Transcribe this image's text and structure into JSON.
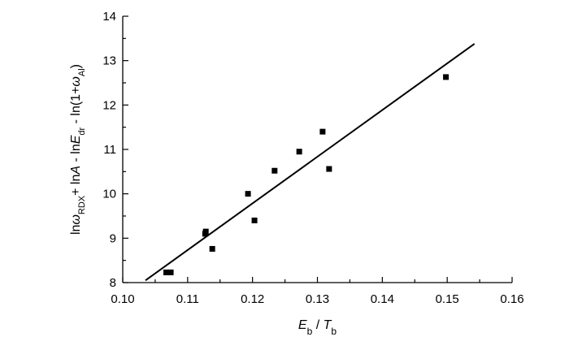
{
  "chart_data": {
    "type": "scatter",
    "xlim": [
      0.1,
      0.16
    ],
    "ylim": [
      8,
      14
    ],
    "xticks": [
      "0.10",
      "0.11",
      "0.12",
      "0.13",
      "0.14",
      "0.15",
      "0.16"
    ],
    "yticks": [
      "8",
      "9",
      "10",
      "11",
      "12",
      "13",
      "14"
    ],
    "xlabel": {
      "main": "E",
      "sub": "b",
      "mid": " / ",
      "main2": "T",
      "sub2": "b"
    },
    "ylabel": {
      "parts": [
        {
          "t": "ln",
          "s": "n"
        },
        {
          "t": "ω",
          "s": "i"
        },
        {
          "t": "RDX",
          "s": "sub"
        },
        {
          "t": "+ ln",
          "s": "n"
        },
        {
          "t": "A",
          "s": "i"
        },
        {
          "t": " - ln",
          "s": "n"
        },
        {
          "t": "E",
          "s": "i"
        },
        {
          "t": "dr",
          "s": "sub"
        },
        {
          "t": " - ln(1+",
          "s": "n"
        },
        {
          "t": "ω",
          "s": "i"
        },
        {
          "t": "Al",
          "s": "sub"
        },
        {
          "t": ")",
          "s": "n"
        }
      ]
    },
    "grid": false,
    "points": [
      {
        "x": 0.1067,
        "y": 8.23
      },
      {
        "x": 0.1074,
        "y": 8.23
      },
      {
        "x": 0.1127,
        "y": 9.1
      },
      {
        "x": 0.1128,
        "y": 9.15
      },
      {
        "x": 0.1138,
        "y": 8.76
      },
      {
        "x": 0.1193,
        "y": 10.0
      },
      {
        "x": 0.1203,
        "y": 9.4
      },
      {
        "x": 0.1234,
        "y": 10.52
      },
      {
        "x": 0.1272,
        "y": 10.95
      },
      {
        "x": 0.1308,
        "y": 11.4
      },
      {
        "x": 0.1318,
        "y": 10.56
      },
      {
        "x": 0.1498,
        "y": 12.63
      }
    ],
    "fit_line": [
      {
        "x": 0.1035,
        "y": 8.05
      },
      {
        "x": 0.1542,
        "y": 13.38
      }
    ]
  }
}
